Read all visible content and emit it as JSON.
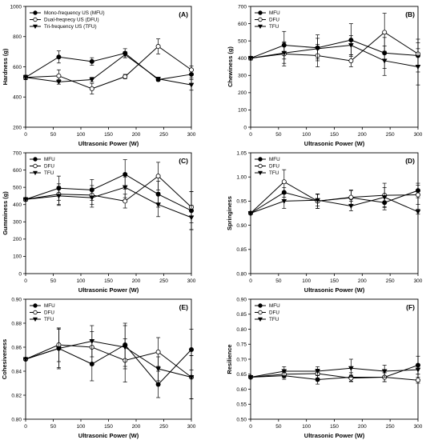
{
  "chart_data": [
    {
      "type": "line",
      "panel": "(A)",
      "xlabel": "Ultrasonic Power (W)",
      "ylabel": "Hardness (g)",
      "xlim": [
        0,
        300
      ],
      "ylim": [
        200,
        1000
      ],
      "xticks": [
        0,
        50,
        100,
        150,
        200,
        250,
        300
      ],
      "yticks": [
        200,
        400,
        600,
        800,
        1000
      ],
      "legend": "top-left",
      "x": [
        0,
        60,
        120,
        180,
        240,
        300
      ],
      "series": [
        {
          "name": "Mono-frequency US (MFU)",
          "marker": "filled-circle",
          "values": [
            530,
            665,
            635,
            690,
            515,
            550
          ],
          "errors": [
            15,
            40,
            25,
            30,
            10,
            25
          ]
        },
        {
          "name": "Dual-freqnecy US (DFU)",
          "marker": "open-circle",
          "values": [
            530,
            540,
            455,
            535,
            735,
            580
          ],
          "errors": [
            15,
            40,
            35,
            15,
            50,
            25
          ]
        },
        {
          "name": "Tri-frequency US (TFU)",
          "marker": "filled-triangle",
          "values": [
            530,
            500,
            515,
            680,
            520,
            480
          ],
          "errors": [
            15,
            15,
            15,
            20,
            10,
            35
          ]
        }
      ]
    },
    {
      "type": "line",
      "panel": "(B)",
      "xlabel": "Ultrasonic Power (W)",
      "ylabel": "Chewiness (g)",
      "xlim": [
        0,
        300
      ],
      "ylim": [
        0,
        700
      ],
      "xticks": [
        0,
        50,
        100,
        150,
        200,
        250,
        300
      ],
      "yticks": [
        0,
        100,
        200,
        300,
        400,
        500,
        600,
        700
      ],
      "legend": "top-left",
      "x": [
        0,
        60,
        120,
        180,
        240,
        300
      ],
      "series": [
        {
          "name": "MFU",
          "marker": "filled-circle",
          "values": [
            400,
            475,
            460,
            505,
            430,
            415
          ],
          "errors": [
            10,
            80,
            75,
            95,
            90,
            95
          ]
        },
        {
          "name": "DFU",
          "marker": "open-circle",
          "values": [
            400,
            425,
            415,
            385,
            550,
            425
          ],
          "errors": [
            10,
            70,
            65,
            35,
            110,
            65
          ]
        },
        {
          "name": "TFU",
          "marker": "filled-triangle",
          "values": [
            400,
            430,
            455,
            475,
            385,
            350
          ],
          "errors": [
            10,
            60,
            60,
            55,
            85,
            105
          ]
        }
      ]
    },
    {
      "type": "line",
      "panel": "(C)",
      "xlabel": "Ultrasonic Power (W)",
      "ylabel": "Gumminess (g)",
      "xlim": [
        0,
        300
      ],
      "ylim": [
        0,
        700
      ],
      "xticks": [
        0,
        50,
        100,
        150,
        200,
        250,
        300
      ],
      "yticks": [
        0,
        100,
        200,
        300,
        400,
        500,
        600,
        700
      ],
      "legend": "top-left",
      "x": [
        0,
        60,
        120,
        180,
        240,
        300
      ],
      "series": [
        {
          "name": "MFU",
          "marker": "filled-circle",
          "values": [
            430,
            495,
            485,
            575,
            460,
            365
          ],
          "errors": [
            10,
            70,
            60,
            85,
            75,
            110
          ]
        },
        {
          "name": "DFU",
          "marker": "open-circle",
          "values": [
            430,
            460,
            455,
            420,
            565,
            385
          ],
          "errors": [
            10,
            60,
            55,
            40,
            80,
            90
          ]
        },
        {
          "name": "TFU",
          "marker": "filled-triangle",
          "values": [
            430,
            450,
            440,
            500,
            400,
            325
          ],
          "errors": [
            10,
            55,
            55,
            60,
            70,
            70
          ]
        }
      ]
    },
    {
      "type": "line",
      "panel": "(D)",
      "xlabel": "Ultrasonic Power (W)",
      "ylabel": "Springiness",
      "xlim": [
        0,
        300
      ],
      "ylim": [
        0.8,
        1.05
      ],
      "xticks": [
        0,
        50,
        100,
        150,
        200,
        250,
        300
      ],
      "yticks": [
        0.8,
        0.85,
        0.9,
        0.95,
        1.0,
        1.05
      ],
      "legend": "top-left",
      "x": [
        0,
        60,
        120,
        180,
        240,
        300
      ],
      "series": [
        {
          "name": "MFU",
          "marker": "filled-circle",
          "values": [
            0.925,
            0.968,
            0.95,
            0.957,
            0.947,
            0.972
          ],
          "errors": [
            0.002,
            0.01,
            0.015,
            0.015,
            0.015,
            0.015
          ]
        },
        {
          "name": "DFU",
          "marker": "open-circle",
          "values": [
            0.925,
            0.99,
            0.95,
            0.958,
            0.962,
            0.963
          ],
          "errors": [
            0.002,
            0.025,
            0.015,
            0.015,
            0.025,
            0.02
          ]
        },
        {
          "name": "TFU",
          "marker": "filled-triangle",
          "values": [
            0.925,
            0.95,
            0.952,
            0.94,
            0.958,
            0.928
          ],
          "errors": [
            0.002,
            0.015,
            0.012,
            0.01,
            0.02,
            0.005
          ]
        }
      ]
    },
    {
      "type": "line",
      "panel": "(E)",
      "xlabel": "Ultrasonic Power (W)",
      "ylabel": "Cohesiveness",
      "xlim": [
        0,
        300
      ],
      "ylim": [
        0.8,
        0.9
      ],
      "xticks": [
        0,
        50,
        100,
        150,
        200,
        250,
        300
      ],
      "yticks": [
        0.8,
        0.82,
        0.84,
        0.86,
        0.88,
        0.9
      ],
      "legend": "top-left",
      "x": [
        0,
        60,
        120,
        180,
        240,
        300
      ],
      "series": [
        {
          "name": "MFU",
          "marker": "filled-circle",
          "values": [
            0.85,
            0.859,
            0.846,
            0.862,
            0.829,
            0.858
          ],
          "errors": [
            0.001,
            0.017,
            0.014,
            0.018,
            0.011,
            0.017
          ]
        },
        {
          "name": "DFU",
          "marker": "open-circle",
          "values": [
            0.85,
            0.862,
            0.86,
            0.849,
            0.856,
            0.835
          ],
          "errors": [
            0.001,
            0.014,
            0.013,
            0.018,
            0.012,
            0.018
          ]
        },
        {
          "name": "TFU",
          "marker": "filled-triangle",
          "values": [
            0.85,
            0.859,
            0.865,
            0.86,
            0.842,
            0.835
          ],
          "errors": [
            0.001,
            0.016,
            0.013,
            0.018,
            0.01,
            0.018
          ]
        }
      ]
    },
    {
      "type": "line",
      "panel": "(F)",
      "xlabel": "Ultrasonic Power (W)",
      "ylabel": "Resilience",
      "xlim": [
        0,
        300
      ],
      "ylim": [
        0.5,
        0.9
      ],
      "xticks": [
        0,
        50,
        100,
        150,
        200,
        250,
        300
      ],
      "yticks": [
        0.5,
        0.55,
        0.6,
        0.65,
        0.7,
        0.75,
        0.8,
        0.85,
        0.9
      ],
      "legend": "top-left",
      "x": [
        0,
        60,
        120,
        180,
        240,
        300
      ],
      "series": [
        {
          "name": "MFU",
          "marker": "filled-circle",
          "values": [
            0.64,
            0.645,
            0.632,
            0.64,
            0.64,
            0.68
          ],
          "errors": [
            0.003,
            0.012,
            0.015,
            0.015,
            0.015,
            0.03
          ]
        },
        {
          "name": "DFU",
          "marker": "open-circle",
          "values": [
            0.64,
            0.65,
            0.652,
            0.637,
            0.64,
            0.63
          ],
          "errors": [
            0.003,
            0.012,
            0.015,
            0.01,
            0.015,
            0.01
          ]
        },
        {
          "name": "TFU",
          "marker": "filled-triangle",
          "values": [
            0.64,
            0.66,
            0.66,
            0.67,
            0.66,
            0.665
          ],
          "errors": [
            0.003,
            0.015,
            0.015,
            0.03,
            0.02,
            0.015
          ]
        }
      ]
    }
  ]
}
